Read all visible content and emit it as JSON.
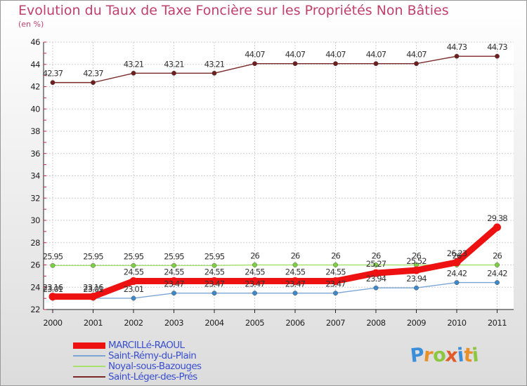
{
  "header": {
    "title": "Evolution du Taux de Taxe Foncière sur les Propriétés Non Bâties",
    "unit": "(en %)"
  },
  "logo": {
    "letters": [
      "P",
      "r",
      "o",
      "x",
      "i",
      "t",
      "i"
    ],
    "colors": [
      "#3a8fd8",
      "#e8902a",
      "#8dc63f",
      "#e05a2a",
      "#3a8fd8",
      "#e8902a",
      "#8dc63f"
    ]
  },
  "chart_data": {
    "type": "line",
    "categories": [
      "2000",
      "2001",
      "2002",
      "2003",
      "2004",
      "2005",
      "2006",
      "2007",
      "2008",
      "2009",
      "2010",
      "2011"
    ],
    "ylim": [
      22,
      46
    ],
    "yticks": [
      22,
      24,
      26,
      28,
      30,
      32,
      34,
      36,
      38,
      40,
      42,
      44,
      46
    ],
    "grid": true,
    "legend_position": "bottom-left",
    "series": [
      {
        "name": "MARCILLé-RAOUL",
        "color": "#ee1111",
        "marker": "#ee1111",
        "labels_shown": true,
        "values": [
          23.16,
          23.16,
          24.55,
          24.55,
          24.55,
          24.55,
          24.55,
          24.55,
          25.27,
          25.52,
          26.23,
          29.38
        ],
        "value_labels": [
          "23.16",
          "23.16",
          "24.55",
          "24.55",
          "24.55",
          "24.55",
          "24.55",
          "24.55",
          "25.27",
          "25.52",
          "26.23",
          "29.38"
        ]
      },
      {
        "name": "Saint-Rémy-du-Plain",
        "color": "#7aa6d6",
        "marker": "#3d88c8",
        "labels_shown": true,
        "values": [
          23.01,
          23.01,
          23.01,
          23.47,
          23.47,
          23.47,
          23.47,
          23.47,
          23.94,
          23.94,
          24.42,
          24.42
        ],
        "value_labels": [
          "23.01",
          "23.01",
          "23.01",
          "23.47",
          "23.47",
          "23.47",
          "23.47",
          "23.47",
          "23.94",
          "23.94",
          "24.42",
          "24.42"
        ]
      },
      {
        "name": "Noyal-sous-Bazouges",
        "color": "#a8e070",
        "marker": "#7ed042",
        "labels_shown": true,
        "values": [
          25.95,
          25.95,
          25.95,
          25.95,
          25.95,
          26,
          26,
          26,
          26,
          26,
          26,
          26
        ],
        "value_labels": [
          "25.95",
          "25.95",
          "25.95",
          "25.95",
          "25.95",
          "26",
          "26",
          "26",
          "26",
          "26",
          "26",
          "26"
        ]
      },
      {
        "name": "Saint-Léger-des-Prés",
        "color": "#7a2828",
        "marker": "#6e1e1e",
        "labels_shown": true,
        "values": [
          42.37,
          42.37,
          43.21,
          43.21,
          43.21,
          44.07,
          44.07,
          44.07,
          44.07,
          44.07,
          44.73,
          44.73
        ],
        "value_labels": [
          "42.37",
          "42.37",
          "43.21",
          "43.21",
          "43.21",
          "44.07",
          "44.07",
          "44.07",
          "44.07",
          "44.07",
          "44.73",
          "44.73"
        ]
      }
    ]
  }
}
